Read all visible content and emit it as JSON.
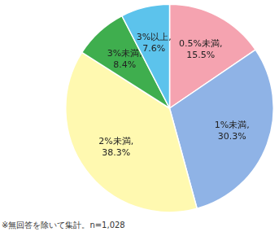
{
  "chart_data": {
    "type": "pie",
    "categories": [
      "0.5%未満,",
      "1%未満,",
      "2%未満,",
      "3%未満,",
      "3%以上,"
    ],
    "values": [
      15.5,
      30.3,
      38.3,
      8.4,
      7.6
    ],
    "value_labels": [
      "15.5%",
      "30.3%",
      "38.3%",
      "8.4%",
      "7.6%"
    ],
    "colors": [
      "#f5a3b0",
      "#8fb3e6",
      "#fff9b0",
      "#3fae4e",
      "#5cc3ec"
    ],
    "data_labels": true,
    "annotations": [
      "※無回答を除いて集計。n=1,028"
    ]
  }
}
